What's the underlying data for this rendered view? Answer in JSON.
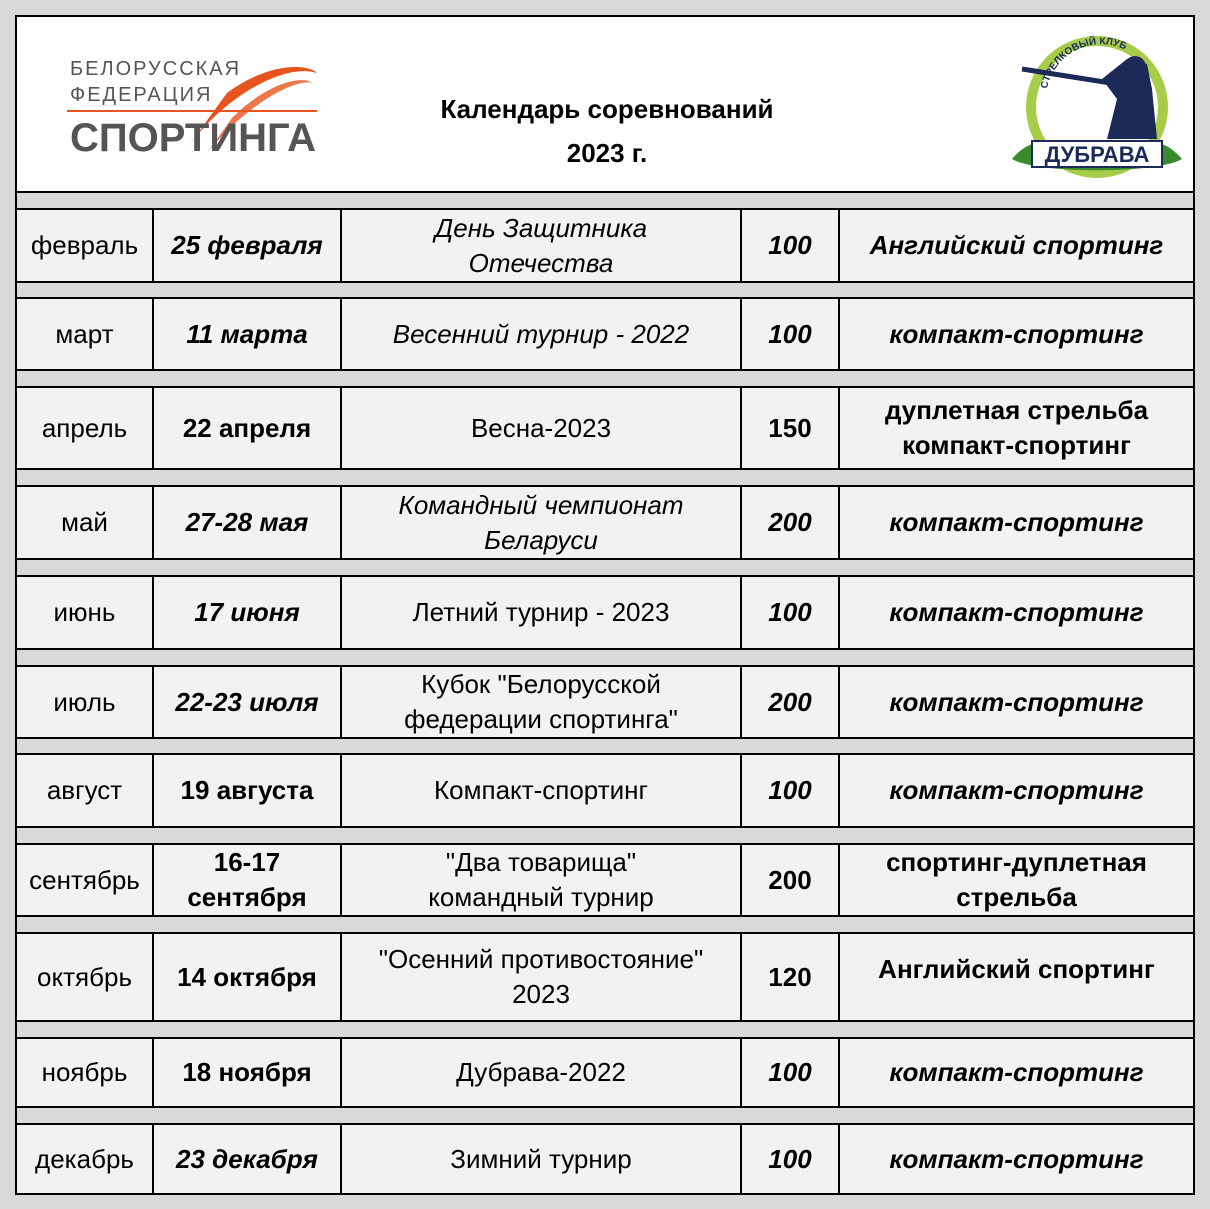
{
  "header": {
    "title_line1": "Календарь соревнований",
    "title_line2": "2023 г.",
    "logo_left": {
      "line1": "БЕЛОРУССКАЯ",
      "line2": "ФЕДЕРАЦИЯ",
      "line3": "СПОРТИНГА",
      "accent": "#e8541e"
    },
    "logo_right": {
      "arc_text": "СТРЕЛКОВЫЙ КЛУБ",
      "name": "ДУБРАВА",
      "ring": "#a6cc4a",
      "figure": "#1c2a5a",
      "leaves": "#3a8a2e"
    }
  },
  "colors": {
    "cell_bg": "#f2f2f2",
    "spacer_bg": "#d9d9d9",
    "border": "#000000"
  },
  "rows": [
    {
      "month": "февраль",
      "date": "25 февраля",
      "event": "День Защитника\nОтечества",
      "count": "100",
      "type": "Английский спортинг",
      "st": [
        "",
        "b i",
        "i",
        "b i",
        "b i"
      ]
    },
    {
      "month": "март",
      "date": "11 марта",
      "event": "Весенний турнир - 2022",
      "count": "100",
      "type": "компакт-спортинг",
      "st": [
        "",
        "b i",
        "i",
        "b i",
        "b i"
      ]
    },
    {
      "month": "апрель",
      "date": "22 апреля",
      "event": "Весна-2023",
      "count": "150",
      "type": "дуплетная стрельба\nкомпакт-спортинг",
      "st": [
        "",
        "b",
        "",
        "b",
        "b"
      ]
    },
    {
      "month": "май",
      "date": "27-28 мая",
      "event": "Командный чемпионат\nБеларуси",
      "count": "200",
      "type": "компакт-спортинг",
      "st": [
        "",
        "b i",
        "i",
        "b i",
        "b i"
      ]
    },
    {
      "month": "июнь",
      "date": "17 июня",
      "event": "Летний турнир - 2023",
      "count": "100",
      "type": "компакт-спортинг",
      "st": [
        "",
        "b i",
        "",
        "b i",
        "b i"
      ]
    },
    {
      "month": "июль",
      "date": "22-23 июля",
      "event": "Кубок \"Белорусской\nфедерации спортинга\"",
      "count": "200",
      "type": "компакт-спортинг",
      "st": [
        "",
        "b i",
        "",
        "b i",
        "b i"
      ]
    },
    {
      "month": "август",
      "date": "19 августа",
      "event": "Компакт-спортинг",
      "count": "100",
      "type": "компакт-спортинг",
      "st": [
        "",
        "b",
        "",
        "b i",
        "b i"
      ]
    },
    {
      "month": "сентябрь",
      "date": "16-17\nсентября",
      "event": "\"Два товарища\"\nкомандный турнир",
      "count": "200",
      "type": "спортинг-дуплетная\nстрельба",
      "st": [
        "",
        "b",
        "",
        "b",
        "b"
      ]
    },
    {
      "month": "октябрь",
      "date": "14 октября",
      "event": "\"Осенний противостояние\"\n2023",
      "count": "120",
      "type": "Английский спортинг",
      "st": [
        "",
        "b",
        "",
        "b",
        "b top"
      ]
    },
    {
      "month": "ноябрь",
      "date": "18 ноября",
      "event": "Дубрава-2022",
      "count": "100",
      "type": "компакт-спортинг",
      "st": [
        "",
        "b",
        "",
        "b i",
        "b i"
      ]
    },
    {
      "month": "декабрь",
      "date": "23 декабря",
      "event": "Зимний турнир",
      "count": "100",
      "type": "компакт-спортинг",
      "st": [
        "",
        "b i",
        "",
        "b i",
        "b i"
      ]
    }
  ]
}
